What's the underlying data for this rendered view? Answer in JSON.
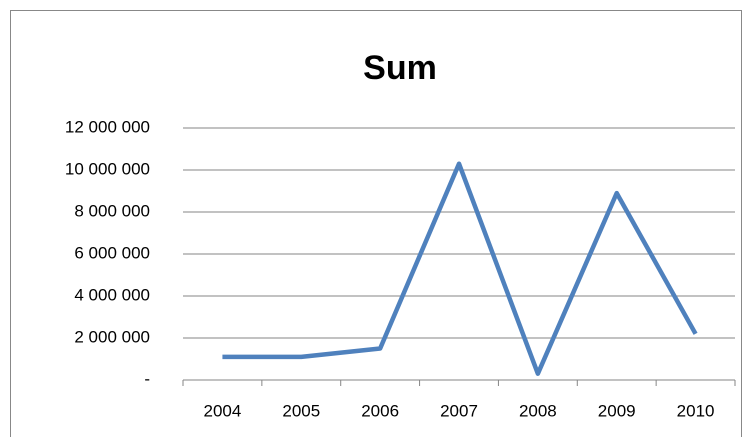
{
  "chart_data": {
    "type": "line",
    "title": "Sum",
    "categories": [
      "2004",
      "2005",
      "2006",
      "2007",
      "2008",
      "2009",
      "2010"
    ],
    "series": [
      {
        "name": "Sum",
        "color": "#4f81bd",
        "values": [
          1100000,
          1100000,
          1500000,
          10300000,
          300000,
          8900000,
          2200000
        ]
      }
    ],
    "ylim": [
      0,
      12000000
    ],
    "yticks": [
      {
        "value": 0,
        "label": "-"
      },
      {
        "value": 2000000,
        "label": "2 000 000"
      },
      {
        "value": 4000000,
        "label": "4 000 000"
      },
      {
        "value": 6000000,
        "label": "6 000 000"
      },
      {
        "value": 8000000,
        "label": "8 000 000"
      },
      {
        "value": 10000000,
        "label": "10 000 000"
      },
      {
        "value": 12000000,
        "label": "12 000 000"
      }
    ],
    "grid": true
  }
}
